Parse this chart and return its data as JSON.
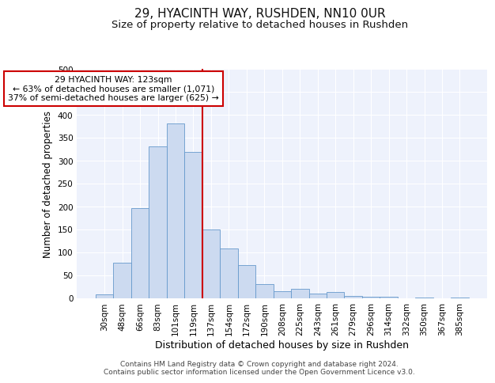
{
  "title": "29, HYACINTH WAY, RUSHDEN, NN10 0UR",
  "subtitle": "Size of property relative to detached houses in Rushden",
  "xlabel": "Distribution of detached houses by size in Rushden",
  "ylabel": "Number of detached properties",
  "bar_labels": [
    "30sqm",
    "48sqm",
    "66sqm",
    "83sqm",
    "101sqm",
    "119sqm",
    "137sqm",
    "154sqm",
    "172sqm",
    "190sqm",
    "208sqm",
    "225sqm",
    "243sqm",
    "261sqm",
    "279sqm",
    "296sqm",
    "314sqm",
    "332sqm",
    "350sqm",
    "367sqm",
    "385sqm"
  ],
  "bar_values": [
    8,
    77,
    196,
    330,
    380,
    318,
    150,
    107,
    72,
    30,
    15,
    20,
    10,
    13,
    5,
    3,
    2,
    0,
    1,
    0,
    1
  ],
  "bar_color": "#ccdaf0",
  "bar_edgecolor": "#6699cc",
  "vline_x_idx": 5,
  "vline_color": "#cc0000",
  "ylim": [
    0,
    500
  ],
  "yticks": [
    0,
    50,
    100,
    150,
    200,
    250,
    300,
    350,
    400,
    450,
    500
  ],
  "annotation_title": "29 HYACINTH WAY: 123sqm",
  "annotation_line1": "← 63% of detached houses are smaller (1,071)",
  "annotation_line2": "37% of semi-detached houses are larger (625) →",
  "annotation_box_facecolor": "#ffffff",
  "annotation_box_edgecolor": "#cc0000",
  "footer_line1": "Contains HM Land Registry data © Crown copyright and database right 2024.",
  "footer_line2": "Contains public sector information licensed under the Open Government Licence v3.0.",
  "background_color": "#eef2fc",
  "grid_color": "#ffffff",
  "fig_facecolor": "#ffffff",
  "title_fontsize": 11,
  "subtitle_fontsize": 9.5,
  "xlabel_fontsize": 9,
  "ylabel_fontsize": 8.5,
  "tick_fontsize": 7.5,
  "annotation_fontsize": 7.8,
  "footer_fontsize": 6.5
}
